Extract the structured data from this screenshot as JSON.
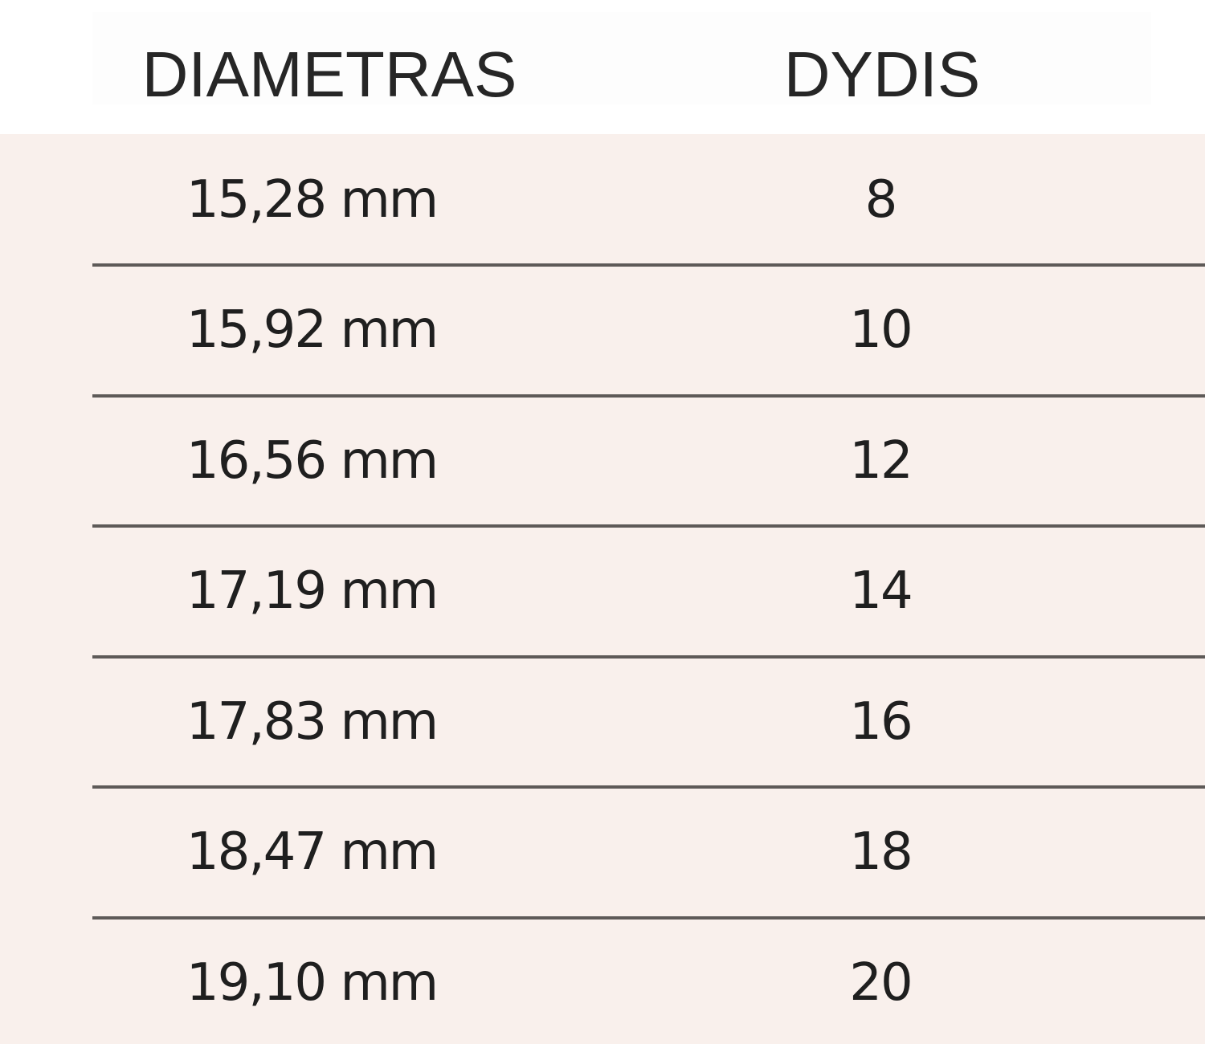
{
  "table": {
    "headers": [
      "DIAMETRAS",
      "DYDIS"
    ],
    "rows": [
      [
        "15,28 mm",
        "8"
      ],
      [
        "15,92 mm",
        "10"
      ],
      [
        "16,56 mm",
        "12"
      ],
      [
        "17,19 mm",
        "14"
      ],
      [
        "17,83 mm",
        "16"
      ],
      [
        "18,47 mm",
        "18"
      ],
      [
        "19,10 mm",
        "20"
      ]
    ]
  },
  "colors": {
    "body_background": "#f9f0ec",
    "rule": "#5e5a58",
    "text": "#262626"
  }
}
